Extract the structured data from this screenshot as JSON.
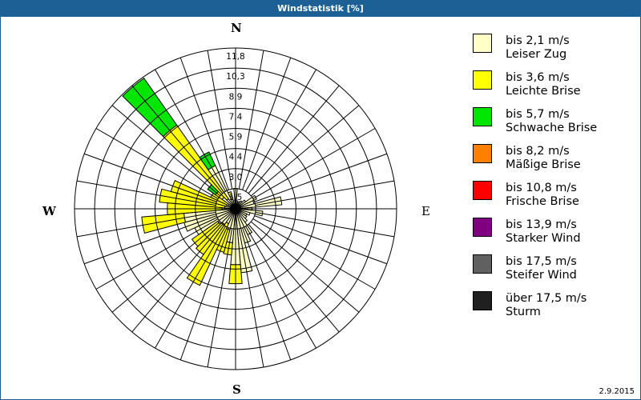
{
  "window": {
    "title": "Windstatistik [%]"
  },
  "compass": {
    "n": "N",
    "e": "E",
    "s": "S",
    "w": "W"
  },
  "footer": {
    "date": "2.9.2015"
  },
  "legend": [
    {
      "range": "bis 2,1 m/s",
      "name": "Leiser Zug",
      "color": "#ffffc8"
    },
    {
      "range": "bis 3,6 m/s",
      "name": "Leichte Brise",
      "color": "#ffff00"
    },
    {
      "range": "bis 5,7 m/s",
      "name": "Schwache Brise",
      "color": "#00e600"
    },
    {
      "range": "bis 8,2 m/s",
      "name": "Mäßige Brise",
      "color": "#ff8000"
    },
    {
      "range": "bis 10,8 m/s",
      "name": "Frische Brise",
      "color": "#ff0000"
    },
    {
      "range": "bis 13,9 m/s",
      "name": "Starker Wind",
      "color": "#800080"
    },
    {
      "range": "bis 17,5 m/s",
      "name": "Steifer Wind",
      "color": "#606060"
    },
    {
      "range": "über 17,5 m/s",
      "name": "Sturm",
      "color": "#202020"
    }
  ],
  "chart_data": {
    "type": "windrose",
    "title": "Windstatistik [%]",
    "unit": "%",
    "direction_step_deg": 10,
    "radial_ticks": [
      "1,5",
      "3,0",
      "4,4",
      "5,9",
      "7,4",
      "8,9",
      "10,3",
      "11,8"
    ],
    "radial_max": 11.8,
    "grid": true,
    "legend_position": "right",
    "series_names": [
      "Leiser Zug",
      "Leichte Brise",
      "Schwache Brise"
    ],
    "series_colors": [
      "#ffffc8",
      "#ffff00",
      "#00e600"
    ],
    "sectors": [
      {
        "dir": 0,
        "values": [
          1.5,
          0,
          0
        ]
      },
      {
        "dir": 10,
        "values": [
          0.6,
          0,
          0
        ]
      },
      {
        "dir": 20,
        "values": [
          0.5,
          0,
          0
        ]
      },
      {
        "dir": 30,
        "values": [
          0.6,
          0,
          0
        ]
      },
      {
        "dir": 40,
        "values": [
          0.7,
          0,
          0
        ]
      },
      {
        "dir": 50,
        "values": [
          0.9,
          0,
          0
        ]
      },
      {
        "dir": 60,
        "values": [
          1.7,
          0,
          0
        ]
      },
      {
        "dir": 70,
        "values": [
          1.4,
          0,
          0
        ]
      },
      {
        "dir": 80,
        "values": [
          3.4,
          0,
          0
        ]
      },
      {
        "dir": 90,
        "values": [
          1.2,
          0,
          0
        ]
      },
      {
        "dir": 100,
        "values": [
          2.0,
          0,
          0
        ]
      },
      {
        "dir": 110,
        "values": [
          1.1,
          0,
          0
        ]
      },
      {
        "dir": 120,
        "values": [
          0.9,
          0,
          0
        ]
      },
      {
        "dir": 130,
        "values": [
          1.0,
          0,
          0
        ]
      },
      {
        "dir": 140,
        "values": [
          1.2,
          0,
          0
        ]
      },
      {
        "dir": 150,
        "values": [
          2.1,
          0,
          0
        ]
      },
      {
        "dir": 160,
        "values": [
          2.6,
          0,
          0
        ]
      },
      {
        "dir": 170,
        "values": [
          4.7,
          0,
          0
        ]
      },
      {
        "dir": 180,
        "values": [
          4.1,
          1.4,
          0
        ]
      },
      {
        "dir": 190,
        "values": [
          2.5,
          0.9,
          0
        ]
      },
      {
        "dir": 200,
        "values": [
          1.6,
          1.7,
          0
        ]
      },
      {
        "dir": 210,
        "values": [
          1.2,
          5.0,
          0
        ]
      },
      {
        "dir": 220,
        "values": [
          1.4,
          2.7,
          0
        ]
      },
      {
        "dir": 230,
        "values": [
          1.6,
          2.3,
          0
        ]
      },
      {
        "dir": 240,
        "values": [
          3.3,
          0,
          0
        ]
      },
      {
        "dir": 250,
        "values": [
          3.9,
          0,
          0
        ]
      },
      {
        "dir": 260,
        "values": [
          3.8,
          3.1,
          0
        ]
      },
      {
        "dir": 270,
        "values": [
          1.0,
          4.0,
          0
        ]
      },
      {
        "dir": 280,
        "values": [
          0.8,
          4.8,
          0
        ]
      },
      {
        "dir": 290,
        "values": [
          0.7,
          4.2,
          0
        ]
      },
      {
        "dir": 300,
        "values": [
          0.6,
          1.4,
          0
        ]
      },
      {
        "dir": 310,
        "values": [
          1.2,
          0.6,
          0.7
        ]
      },
      {
        "dir": 320,
        "values": [
          0.9,
          6.6,
          4.2
        ]
      },
      {
        "dir": 330,
        "values": [
          3.5,
          0,
          1.1
        ]
      },
      {
        "dir": 340,
        "values": [
          1.0,
          0.3,
          0
        ]
      },
      {
        "dir": 350,
        "values": [
          0.6,
          0,
          0
        ]
      }
    ]
  }
}
